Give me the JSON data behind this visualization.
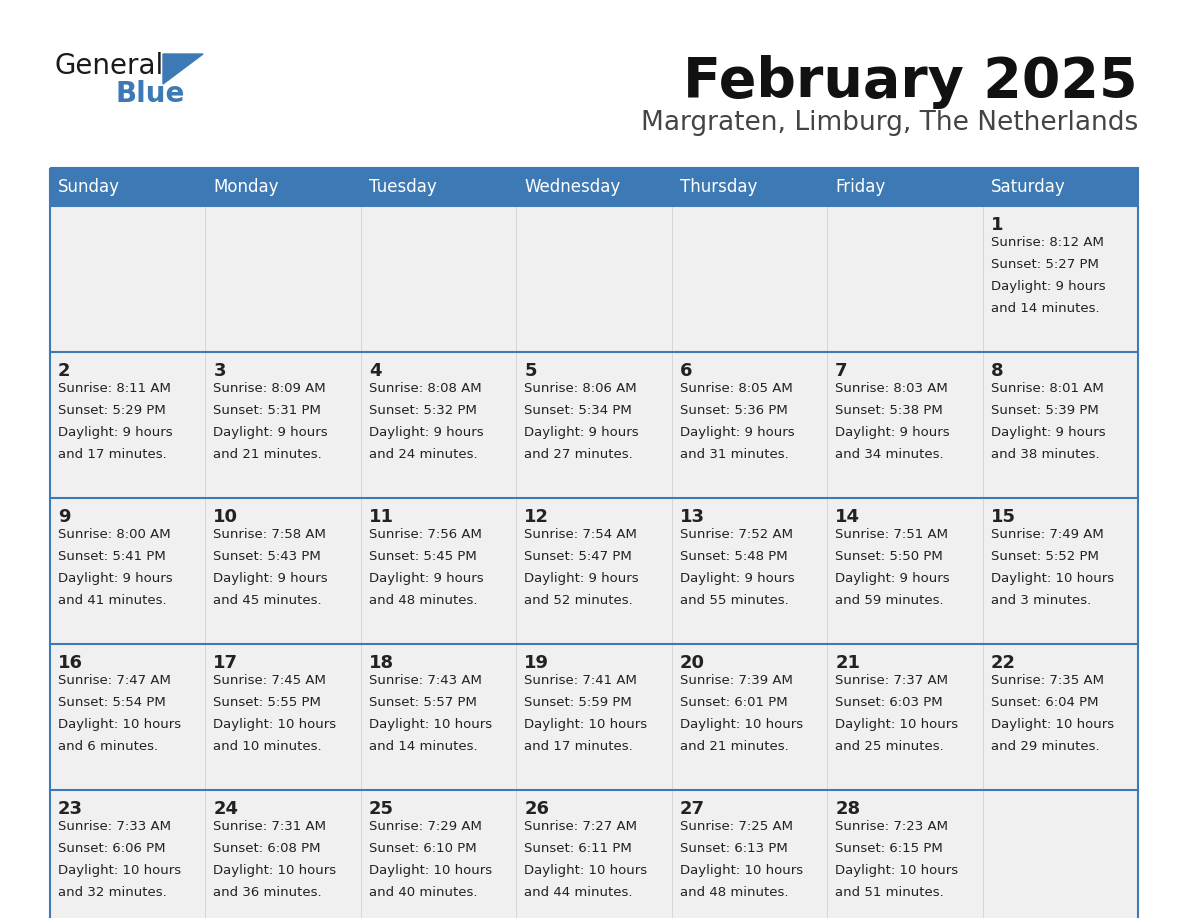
{
  "title": "February 2025",
  "subtitle": "Margraten, Limburg, The Netherlands",
  "header_bg": "#3d7ab5",
  "header_text_color": "#ffffff",
  "days_of_week": [
    "Sunday",
    "Monday",
    "Tuesday",
    "Wednesday",
    "Thursday",
    "Friday",
    "Saturday"
  ],
  "cell_bg": "#f0f0f0",
  "divider_color": "#3d7ab5",
  "text_color": "#222222",
  "title_color": "#111111",
  "subtitle_color": "#444444",
  "logo_triangle_color": "#3d7ab5",
  "weeks": [
    [
      {
        "day": null,
        "text": ""
      },
      {
        "day": null,
        "text": ""
      },
      {
        "day": null,
        "text": ""
      },
      {
        "day": null,
        "text": ""
      },
      {
        "day": null,
        "text": ""
      },
      {
        "day": null,
        "text": ""
      },
      {
        "day": 1,
        "text": "Sunrise: 8:12 AM\nSunset: 5:27 PM\nDaylight: 9 hours\nand 14 minutes."
      }
    ],
    [
      {
        "day": 2,
        "text": "Sunrise: 8:11 AM\nSunset: 5:29 PM\nDaylight: 9 hours\nand 17 minutes."
      },
      {
        "day": 3,
        "text": "Sunrise: 8:09 AM\nSunset: 5:31 PM\nDaylight: 9 hours\nand 21 minutes."
      },
      {
        "day": 4,
        "text": "Sunrise: 8:08 AM\nSunset: 5:32 PM\nDaylight: 9 hours\nand 24 minutes."
      },
      {
        "day": 5,
        "text": "Sunrise: 8:06 AM\nSunset: 5:34 PM\nDaylight: 9 hours\nand 27 minutes."
      },
      {
        "day": 6,
        "text": "Sunrise: 8:05 AM\nSunset: 5:36 PM\nDaylight: 9 hours\nand 31 minutes."
      },
      {
        "day": 7,
        "text": "Sunrise: 8:03 AM\nSunset: 5:38 PM\nDaylight: 9 hours\nand 34 minutes."
      },
      {
        "day": 8,
        "text": "Sunrise: 8:01 AM\nSunset: 5:39 PM\nDaylight: 9 hours\nand 38 minutes."
      }
    ],
    [
      {
        "day": 9,
        "text": "Sunrise: 8:00 AM\nSunset: 5:41 PM\nDaylight: 9 hours\nand 41 minutes."
      },
      {
        "day": 10,
        "text": "Sunrise: 7:58 AM\nSunset: 5:43 PM\nDaylight: 9 hours\nand 45 minutes."
      },
      {
        "day": 11,
        "text": "Sunrise: 7:56 AM\nSunset: 5:45 PM\nDaylight: 9 hours\nand 48 minutes."
      },
      {
        "day": 12,
        "text": "Sunrise: 7:54 AM\nSunset: 5:47 PM\nDaylight: 9 hours\nand 52 minutes."
      },
      {
        "day": 13,
        "text": "Sunrise: 7:52 AM\nSunset: 5:48 PM\nDaylight: 9 hours\nand 55 minutes."
      },
      {
        "day": 14,
        "text": "Sunrise: 7:51 AM\nSunset: 5:50 PM\nDaylight: 9 hours\nand 59 minutes."
      },
      {
        "day": 15,
        "text": "Sunrise: 7:49 AM\nSunset: 5:52 PM\nDaylight: 10 hours\nand 3 minutes."
      }
    ],
    [
      {
        "day": 16,
        "text": "Sunrise: 7:47 AM\nSunset: 5:54 PM\nDaylight: 10 hours\nand 6 minutes."
      },
      {
        "day": 17,
        "text": "Sunrise: 7:45 AM\nSunset: 5:55 PM\nDaylight: 10 hours\nand 10 minutes."
      },
      {
        "day": 18,
        "text": "Sunrise: 7:43 AM\nSunset: 5:57 PM\nDaylight: 10 hours\nand 14 minutes."
      },
      {
        "day": 19,
        "text": "Sunrise: 7:41 AM\nSunset: 5:59 PM\nDaylight: 10 hours\nand 17 minutes."
      },
      {
        "day": 20,
        "text": "Sunrise: 7:39 AM\nSunset: 6:01 PM\nDaylight: 10 hours\nand 21 minutes."
      },
      {
        "day": 21,
        "text": "Sunrise: 7:37 AM\nSunset: 6:03 PM\nDaylight: 10 hours\nand 25 minutes."
      },
      {
        "day": 22,
        "text": "Sunrise: 7:35 AM\nSunset: 6:04 PM\nDaylight: 10 hours\nand 29 minutes."
      }
    ],
    [
      {
        "day": 23,
        "text": "Sunrise: 7:33 AM\nSunset: 6:06 PM\nDaylight: 10 hours\nand 32 minutes."
      },
      {
        "day": 24,
        "text": "Sunrise: 7:31 AM\nSunset: 6:08 PM\nDaylight: 10 hours\nand 36 minutes."
      },
      {
        "day": 25,
        "text": "Sunrise: 7:29 AM\nSunset: 6:10 PM\nDaylight: 10 hours\nand 40 minutes."
      },
      {
        "day": 26,
        "text": "Sunrise: 7:27 AM\nSunset: 6:11 PM\nDaylight: 10 hours\nand 44 minutes."
      },
      {
        "day": 27,
        "text": "Sunrise: 7:25 AM\nSunset: 6:13 PM\nDaylight: 10 hours\nand 48 minutes."
      },
      {
        "day": 28,
        "text": "Sunrise: 7:23 AM\nSunset: 6:15 PM\nDaylight: 10 hours\nand 51 minutes."
      },
      {
        "day": null,
        "text": ""
      }
    ]
  ]
}
